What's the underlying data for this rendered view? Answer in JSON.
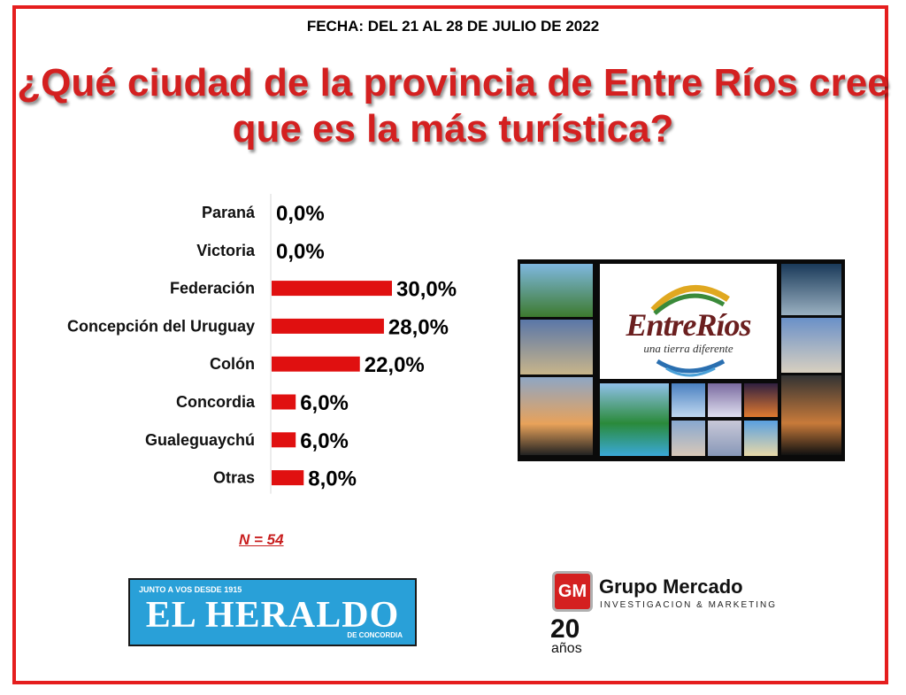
{
  "header": {
    "date": "FECHA: DEL 21 AL 28 DE JULIO DE 2022"
  },
  "chart_data": {
    "type": "bar",
    "orientation": "horizontal",
    "title": "¿Qué ciudad de la provincia de Entre Ríos cree que es la más turística?",
    "categories": [
      "Paraná",
      "Victoria",
      "Federación",
      "Concepción del Uruguay",
      "Colón",
      "Concordia",
      "Gualeguaychú",
      "Otras"
    ],
    "values": [
      0.0,
      0.0,
      30.0,
      28.0,
      22.0,
      6.0,
      6.0,
      8.0
    ],
    "value_labels": [
      "0,0%",
      "0,0%",
      "30,0%",
      "28,0%",
      "22,0%",
      "6,0%",
      "6,0%",
      "8,0%"
    ],
    "bar_color": "#e01010",
    "xlim": [
      0,
      30
    ],
    "grid": false,
    "legend": "none"
  },
  "sample": {
    "label": "N = 54"
  },
  "collage": {
    "logo_title": "EntreRíos",
    "logo_subtitle": "una tierra diferente"
  },
  "newspaper": {
    "tagline": "JUNTO A VOS DESDE 1915",
    "name": "EL HERALDO",
    "subtitle": "DE CONCORDIA"
  },
  "agency": {
    "icon_text": "GM",
    "name": "Grupo Mercado",
    "subtitle": "INVESTIGACION & MARKETING",
    "years": "20",
    "years_label": "años"
  },
  "colors": {
    "frame": "#e51e1e",
    "title": "#d42020",
    "newspaper": "#29a0d8"
  }
}
